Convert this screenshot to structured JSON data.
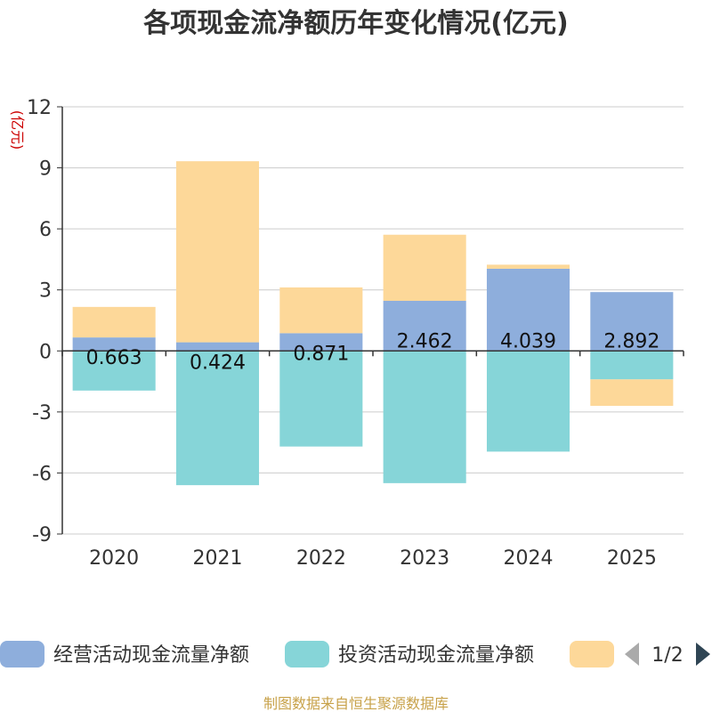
{
  "chart_data": {
    "type": "bar",
    "stacked": true,
    "title": "各项现金流净额历年变化情况(亿元)",
    "ylabel": "(亿元)",
    "xlabel": "",
    "categories": [
      "2020",
      "2021",
      "2022",
      "2023",
      "2024",
      "2025"
    ],
    "yticks": [
      12,
      9,
      6,
      3,
      0,
      -3,
      -6,
      -9
    ],
    "ylim": [
      -9,
      12
    ],
    "grid": true,
    "series": [
      {
        "name": "经营活动现金流量净额",
        "color": "#8eaedc",
        "values": [
          0.663,
          0.424,
          0.871,
          2.462,
          4.039,
          2.892
        ],
        "labels": [
          "0.663",
          "0.424",
          "0.871",
          "2.462",
          "4.039",
          "2.892"
        ]
      },
      {
        "name": "投资活动现金流量净额",
        "color": "#86d5d8",
        "values": [
          -1.95,
          -6.6,
          -4.7,
          -6.5,
          -4.95,
          -1.4
        ]
      },
      {
        "name": "",
        "color": "#fdd899",
        "values": [
          1.5,
          8.9,
          2.25,
          3.25,
          0.2,
          -1.3
        ]
      }
    ],
    "legend": {
      "position": "bottom",
      "page": "1/2",
      "items": [
        "经营活动现金流量净额",
        "投资活动现金流量净额",
        ""
      ]
    },
    "source": "制图数据来自恒生聚源数据库"
  }
}
